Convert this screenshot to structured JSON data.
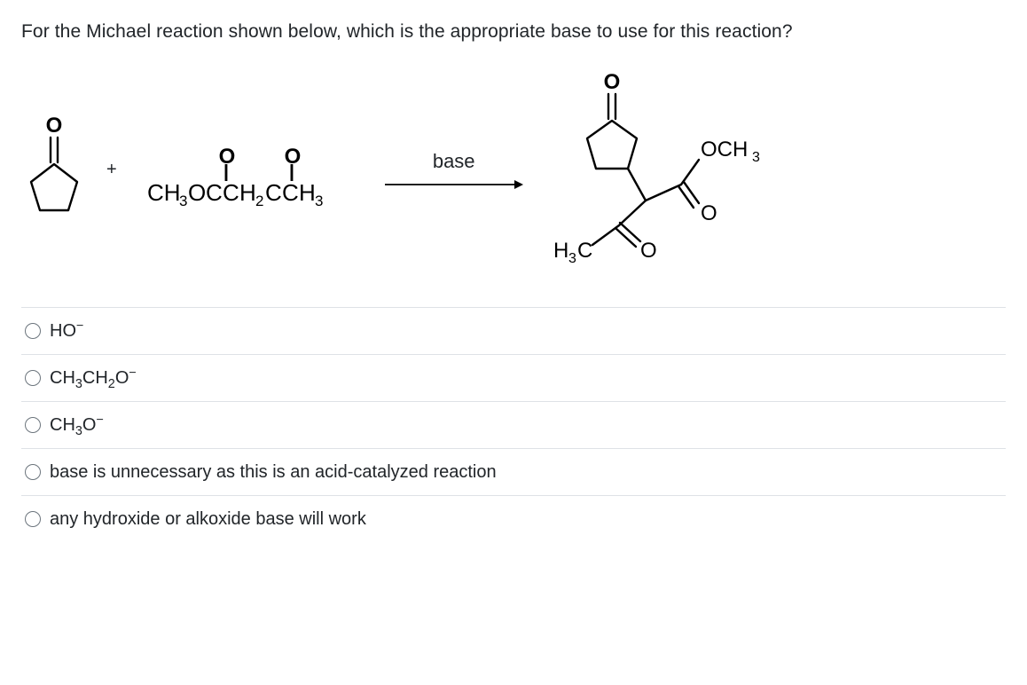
{
  "question": "For the Michael reaction shown below, which is the appropriate base to use for this reaction?",
  "reaction": {
    "reactant1": {
      "type": "cyclopentanone-svg",
      "stroke": "#000000",
      "stroke_width": 2.2
    },
    "plus": "+",
    "reactant2": {
      "top_o": [
        "O",
        "O"
      ],
      "dbond": "||",
      "formula_html": "CH<sub>3</sub>OCCH<sub>2</sub>CCH<sub>3</sub>"
    },
    "arrow_label": "base",
    "arrow": {
      "width": 150,
      "stroke": "#000000",
      "stroke_width": 1.6
    },
    "product": {
      "type": "product-svg",
      "stroke": "#000000",
      "stroke_width": 2.2,
      "labels": {
        "och3": "OCH",
        "och3_sub": "3",
        "h3c": "H",
        "h3c_sub": "3",
        "h3c_c": "C",
        "o": "O"
      }
    }
  },
  "options": [
    {
      "html": "HO<sup>−</sup>"
    },
    {
      "html": "CH<sub>3</sub>CH<sub>2</sub>O<sup>−</sup>"
    },
    {
      "html": "CH<sub>3</sub>O<sup>−</sup>"
    },
    {
      "html": "base is unnecessary as this is an acid-catalyzed reaction"
    },
    {
      "html": "any hydroxide or alkoxide base will work"
    }
  ],
  "colors": {
    "text": "#212529",
    "divider": "#dee2e6",
    "radio_border": "#6c757d",
    "background": "#ffffff"
  }
}
